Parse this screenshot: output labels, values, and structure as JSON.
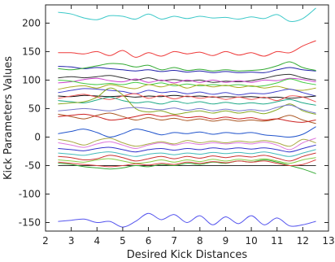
{
  "chart_data": {
    "type": "line",
    "xlabel": "Desired Kick Distances",
    "ylabel": "Kick Parameters Values",
    "xlim": [
      2,
      13
    ],
    "ylim": [
      -165,
      232
    ],
    "xticks": [
      2,
      3,
      4,
      5,
      6,
      7,
      8,
      9,
      10,
      11,
      12,
      13
    ],
    "yticks": [
      -150,
      -100,
      -50,
      0,
      50,
      100,
      150,
      200
    ],
    "grid": false,
    "legend": "none",
    "x": [
      2.5,
      3.0,
      3.5,
      4.0,
      4.5,
      5.0,
      5.5,
      6.0,
      6.5,
      7.0,
      7.5,
      8.0,
      8.5,
      9.0,
      9.5,
      10.0,
      10.5,
      11.0,
      11.5,
      12.0,
      12.5
    ],
    "series": [
      {
        "color": "#3ec9c9",
        "values": [
          219,
          216,
          209,
          206,
          213,
          212,
          207,
          216,
          207,
          212,
          208,
          212,
          209,
          210,
          207,
          211,
          208,
          215,
          203,
          208,
          226
        ]
      },
      {
        "color": "#ee3a3a",
        "values": [
          148,
          148,
          146,
          150,
          143,
          152,
          140,
          148,
          142,
          150,
          146,
          149,
          143,
          150,
          144,
          148,
          142,
          150,
          148,
          160,
          169
        ]
      },
      {
        "color": "#2222aa",
        "values": [
          124,
          123,
          120,
          122,
          120,
          118,
          116,
          118,
          115,
          117,
          114,
          116,
          113,
          115,
          113,
          114,
          113,
          118,
          122,
          118,
          116
        ]
      },
      {
        "color": "#33aa33",
        "values": [
          120,
          118,
          121,
          125,
          129,
          128,
          123,
          126,
          118,
          122,
          117,
          119,
          116,
          118,
          116,
          117,
          119,
          125,
          132,
          122,
          117
        ]
      },
      {
        "color": "#333333",
        "values": [
          104,
          106,
          104,
          106,
          108,
          104,
          100,
          104,
          99,
          101,
          98,
          100,
          96,
          98,
          97,
          99,
          103,
          108,
          110,
          104,
          100
        ]
      },
      {
        "color": "#cc44cc",
        "values": [
          95,
          97,
          101,
          103,
          99,
          97,
          102,
          96,
          100,
          95,
          100,
          96,
          100,
          96,
          99,
          96,
          100,
          99,
          103,
          101,
          97
        ]
      },
      {
        "color": "#44cc44",
        "values": [
          100,
          98,
          94,
          92,
          94,
          92,
          96,
          92,
          95,
          90,
          93,
          90,
          92,
          90,
          92,
          89,
          90,
          95,
          102,
          96,
          92
        ]
      },
      {
        "color": "#aaaa22",
        "values": [
          84,
          88,
          90,
          86,
          92,
          88,
          85,
          92,
          88,
          93,
          86,
          92,
          88,
          91,
          87,
          90,
          86,
          89,
          84,
          82,
          86
        ]
      },
      {
        "color": "#4444cc",
        "values": [
          78,
          82,
          85,
          84,
          82,
          80,
          76,
          82,
          78,
          80,
          76,
          79,
          75,
          78,
          74,
          77,
          76,
          80,
          84,
          78,
          72
        ]
      },
      {
        "color": "#111111",
        "values": [
          72,
          71,
          73,
          72,
          71,
          72,
          70,
          72,
          71,
          73,
          71,
          72,
          70,
          71,
          70,
          71,
          69,
          70,
          68,
          70,
          72
        ]
      },
      {
        "color": "#ee5555",
        "values": [
          68,
          72,
          75,
          70,
          66,
          72,
          76,
          68,
          73,
          67,
          72,
          68,
          71,
          66,
          70,
          66,
          70,
          64,
          72,
          70,
          62
        ]
      },
      {
        "color": "#22aa88",
        "values": [
          64,
          62,
          60,
          65,
          70,
          64,
          60,
          62,
          58,
          63,
          59,
          62,
          58,
          61,
          58,
          60,
          58,
          62,
          66,
          60,
          56
        ]
      },
      {
        "color": "#88aa22",
        "values": [
          58,
          60,
          62,
          70,
          86,
          74,
          50,
          44,
          46,
          40,
          43,
          46,
          42,
          46,
          42,
          45,
          41,
          48,
          58,
          46,
          40
        ]
      },
      {
        "color": "#7777cc",
        "values": [
          46,
          48,
          50,
          48,
          46,
          50,
          52,
          50,
          48,
          51,
          47,
          50,
          46,
          49,
          46,
          48,
          46,
          52,
          56,
          48,
          42
        ]
      },
      {
        "color": "#aa5522",
        "values": [
          40,
          36,
          32,
          38,
          42,
          36,
          30,
          34,
          30,
          33,
          29,
          32,
          28,
          31,
          28,
          30,
          28,
          32,
          38,
          30,
          24
        ]
      },
      {
        "color": "#cc2222",
        "values": [
          36,
          38,
          40,
          36,
          30,
          32,
          36,
          40,
          36,
          38,
          34,
          36,
          32,
          35,
          32,
          34,
          30,
          32,
          28,
          26,
          30
        ]
      },
      {
        "color": "#2255cc",
        "values": [
          6,
          10,
          14,
          8,
          0,
          6,
          14,
          10,
          4,
          8,
          6,
          9,
          5,
          8,
          6,
          8,
          4,
          2,
          0,
          5,
          18
        ]
      },
      {
        "color": "#aaaa44",
        "values": [
          -4,
          -8,
          -14,
          -6,
          -2,
          -10,
          -16,
          -12,
          -8,
          -12,
          -6,
          -10,
          -7,
          -10,
          -7,
          -9,
          -6,
          -10,
          -16,
          -4,
          -10
        ]
      },
      {
        "color": "#dd77dd",
        "values": [
          -10,
          -14,
          -18,
          -12,
          -8,
          -14,
          -20,
          -14,
          -10,
          -14,
          -10,
          -13,
          -10,
          -12,
          -10,
          -12,
          -9,
          -14,
          -22,
          -10,
          -2
        ]
      },
      {
        "color": "#3333cc",
        "values": [
          -20,
          -22,
          -24,
          -20,
          -18,
          -22,
          -26,
          -22,
          -20,
          -23,
          -20,
          -22,
          -19,
          -21,
          -19,
          -21,
          -19,
          -22,
          -26,
          -20,
          -14
        ]
      },
      {
        "color": "#44bbbb",
        "values": [
          -28,
          -30,
          -32,
          -28,
          -26,
          -30,
          -34,
          -30,
          -28,
          -31,
          -28,
          -30,
          -27,
          -29,
          -27,
          -29,
          -26,
          -30,
          -34,
          -28,
          -22
        ]
      },
      {
        "color": "#cc3333",
        "values": [
          -34,
          -36,
          -40,
          -38,
          -32,
          -36,
          -42,
          -38,
          -34,
          -38,
          -34,
          -37,
          -33,
          -36,
          -33,
          -35,
          -32,
          -37,
          -42,
          -34,
          -28
        ]
      },
      {
        "color": "#88cc44",
        "values": [
          -40,
          -42,
          -44,
          -40,
          -38,
          -42,
          -46,
          -44,
          -40,
          -44,
          -40,
          -43,
          -39,
          -42,
          -39,
          -41,
          -38,
          -42,
          -46,
          -40,
          -36
        ]
      },
      {
        "color": "#333333",
        "values": [
          -50,
          -50,
          -50,
          -50,
          -50,
          -50,
          -50,
          -50,
          -50,
          -50,
          -50,
          -50,
          -50,
          -50,
          -50,
          -50,
          -50,
          -50,
          -50,
          -50,
          -50
        ]
      },
      {
        "color": "#33aa33",
        "values": [
          -46,
          -48,
          -52,
          -54,
          -56,
          -54,
          -50,
          -52,
          -48,
          -50,
          -46,
          -48,
          -44,
          -46,
          -42,
          -44,
          -40,
          -44,
          -50,
          -56,
          -64
        ]
      },
      {
        "color": "#dd4444",
        "values": [
          -44,
          -46,
          -48,
          -50,
          -52,
          -50,
          -47,
          -49,
          -46,
          -48,
          -44,
          -46,
          -43,
          -45,
          -42,
          -44,
          -42,
          -46,
          -50,
          -48,
          -40
        ]
      },
      {
        "color": "#5555ee",
        "values": [
          -148,
          -146,
          -144,
          -150,
          -148,
          -158,
          -148,
          -134,
          -145,
          -136,
          -150,
          -138,
          -154,
          -140,
          -152,
          -138,
          -154,
          -142,
          -156,
          -154,
          -148
        ]
      }
    ]
  }
}
